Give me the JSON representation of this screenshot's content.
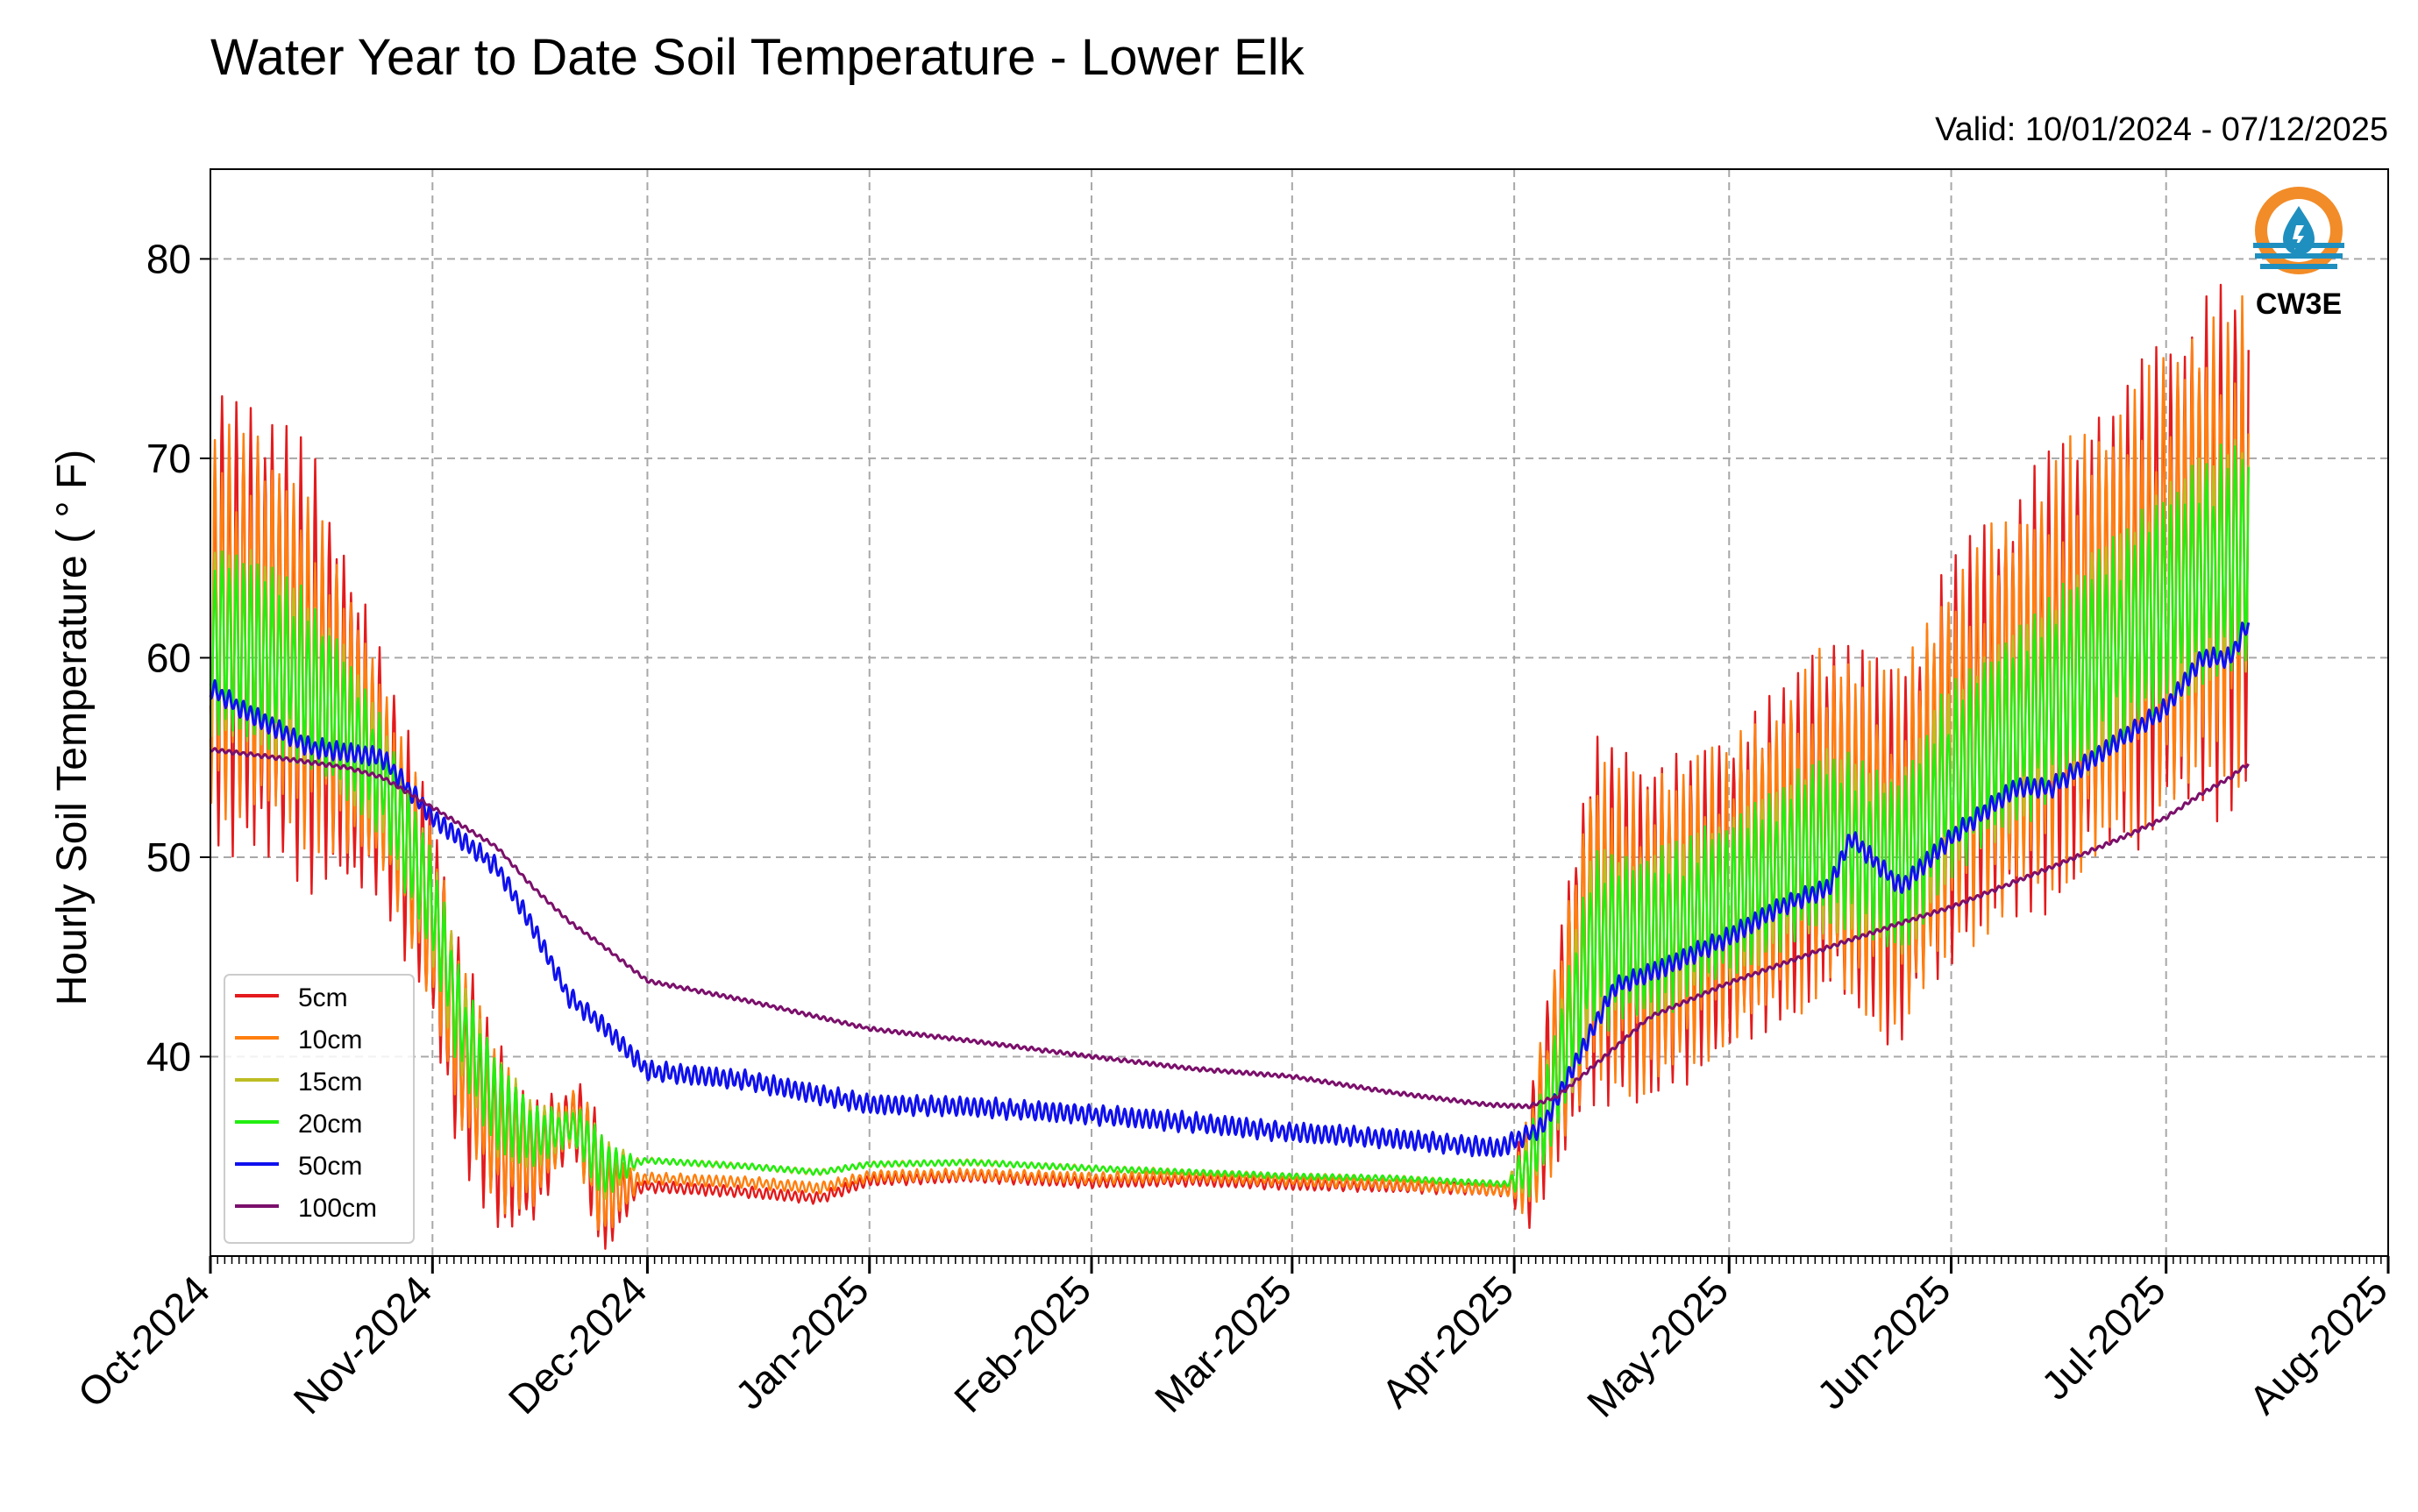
{
  "chart_data": {
    "type": "line",
    "title": "Water Year to Date Soil Temperature - Lower Elk",
    "subtitle": "Valid: 10/01/2024 - 07/12/2025",
    "ylabel": "Hourly Soil Temperature ( ° F)",
    "xlabel": "",
    "xlim": [
      "2024-10-01",
      "2025-08-01"
    ],
    "ylim": [
      30,
      84.5
    ],
    "yticks": [
      40,
      50,
      60,
      70,
      80
    ],
    "xticks": [
      "2024-10-01",
      "2024-11-01",
      "2024-12-01",
      "2025-01-01",
      "2025-02-01",
      "2025-03-01",
      "2025-04-01",
      "2025-05-01",
      "2025-06-01",
      "2025-07-01",
      "2025-08-01"
    ],
    "xtick_labels": [
      "Oct-2024",
      "Nov-2024",
      "Dec-2024",
      "Jan-2025",
      "Feb-2025",
      "Mar-2025",
      "Apr-2025",
      "May-2025",
      "Jun-2025",
      "Jul-2025",
      "Aug-2025"
    ],
    "grid": true,
    "legend_position": "lower-left",
    "logo": {
      "label": "CW3E",
      "colors": [
        "#f28c28",
        "#1f8fbf"
      ]
    },
    "series": [
      {
        "name": "5cm",
        "color": "#e41a1c",
        "amp": [
          [
            "2024-10-01",
            12
          ],
          [
            "2024-10-15",
            11
          ],
          [
            "2024-10-25",
            6
          ],
          [
            "2024-11-10",
            5
          ],
          [
            "2024-11-20",
            1.5
          ],
          [
            "2024-11-24",
            3.5
          ],
          [
            "2024-11-30",
            0.3
          ],
          [
            "2025-03-31",
            0.3
          ],
          [
            "2025-04-04",
            4
          ],
          [
            "2025-04-12",
            9
          ],
          [
            "2025-05-01",
            8
          ],
          [
            "2025-06-01",
            10
          ],
          [
            "2025-07-01",
            12
          ],
          [
            "2025-07-12",
            13
          ]
        ],
        "values": [
          [
            "2024-10-01",
            62
          ],
          [
            "2024-10-10",
            61
          ],
          [
            "2024-10-18",
            58
          ],
          [
            "2024-10-25",
            54
          ],
          [
            "2024-11-01",
            47
          ],
          [
            "2024-11-05",
            40
          ],
          [
            "2024-11-10",
            36
          ],
          [
            "2024-11-15",
            34.8
          ],
          [
            "2024-11-21",
            37
          ],
          [
            "2024-11-25",
            33
          ],
          [
            "2024-12-01",
            33.5
          ],
          [
            "2024-12-15",
            33.2
          ],
          [
            "2024-12-25",
            32.9
          ],
          [
            "2025-01-01",
            33.8
          ],
          [
            "2025-01-15",
            34
          ],
          [
            "2025-02-01",
            33.7
          ],
          [
            "2025-02-15",
            33.8
          ],
          [
            "2025-03-01",
            33.6
          ],
          [
            "2025-03-15",
            33.5
          ],
          [
            "2025-03-31",
            33.3
          ],
          [
            "2025-04-03",
            34.5
          ],
          [
            "2025-04-07",
            40
          ],
          [
            "2025-04-12",
            47
          ],
          [
            "2025-04-20",
            46
          ],
          [
            "2025-05-01",
            48
          ],
          [
            "2025-05-15",
            52
          ],
          [
            "2025-05-25",
            50
          ],
          [
            "2025-06-01",
            55
          ],
          [
            "2025-06-15",
            59
          ],
          [
            "2025-07-01",
            64
          ],
          [
            "2025-07-12",
            66
          ]
        ]
      },
      {
        "name": "10cm",
        "color": "#ff7f0e",
        "amp": [
          [
            "2024-10-01",
            10
          ],
          [
            "2024-10-15",
            9
          ],
          [
            "2024-10-25",
            5
          ],
          [
            "2024-11-10",
            4
          ],
          [
            "2024-11-20",
            1.2
          ],
          [
            "2024-11-24",
            3
          ],
          [
            "2024-11-30",
            0.3
          ],
          [
            "2025-03-31",
            0.3
          ],
          [
            "2025-04-04",
            3.5
          ],
          [
            "2025-04-12",
            8
          ],
          [
            "2025-05-01",
            7.5
          ],
          [
            "2025-06-01",
            9.5
          ],
          [
            "2025-07-01",
            11.5
          ],
          [
            "2025-07-12",
            12
          ]
        ],
        "values": [
          [
            "2024-10-01",
            62
          ],
          [
            "2024-10-10",
            61
          ],
          [
            "2024-10-18",
            58
          ],
          [
            "2024-10-25",
            54
          ],
          [
            "2024-11-01",
            47
          ],
          [
            "2024-11-05",
            40.5
          ],
          [
            "2024-11-10",
            36.2
          ],
          [
            "2024-11-15",
            35
          ],
          [
            "2024-11-21",
            37
          ],
          [
            "2024-11-25",
            33.2
          ],
          [
            "2024-12-01",
            33.9
          ],
          [
            "2024-12-15",
            33.7
          ],
          [
            "2024-12-25",
            33.4
          ],
          [
            "2025-01-01",
            34
          ],
          [
            "2025-01-15",
            34.1
          ],
          [
            "2025-02-01",
            33.9
          ],
          [
            "2025-02-15",
            34
          ],
          [
            "2025-03-01",
            33.8
          ],
          [
            "2025-03-15",
            33.6
          ],
          [
            "2025-03-31",
            33.3
          ],
          [
            "2025-04-03",
            34.5
          ],
          [
            "2025-04-07",
            40
          ],
          [
            "2025-04-12",
            47
          ],
          [
            "2025-04-20",
            46
          ],
          [
            "2025-05-01",
            48
          ],
          [
            "2025-05-15",
            52
          ],
          [
            "2025-05-25",
            50
          ],
          [
            "2025-06-01",
            55
          ],
          [
            "2025-06-15",
            59
          ],
          [
            "2025-07-01",
            64
          ],
          [
            "2025-07-12",
            66
          ]
        ]
      },
      {
        "name": "15cm",
        "color": "#bcbd22",
        "amp": [
          [
            "2024-10-01",
            5
          ],
          [
            "2024-10-15",
            4.5
          ],
          [
            "2024-10-25",
            3
          ],
          [
            "2024-11-10",
            2.5
          ],
          [
            "2024-11-20",
            0.8
          ],
          [
            "2024-11-24",
            1.8
          ],
          [
            "2024-11-30",
            0.15
          ],
          [
            "2025-03-31",
            0.15
          ],
          [
            "2025-04-04",
            2
          ],
          [
            "2025-04-12",
            4.5
          ],
          [
            "2025-05-01",
            4
          ],
          [
            "2025-06-01",
            4.8
          ],
          [
            "2025-07-01",
            5.5
          ],
          [
            "2025-07-12",
            6
          ]
        ],
        "values": [
          [
            "2024-10-01",
            61
          ],
          [
            "2024-10-10",
            60
          ],
          [
            "2024-10-18",
            57.5
          ],
          [
            "2024-10-25",
            54
          ],
          [
            "2024-11-01",
            47.5
          ],
          [
            "2024-11-05",
            41.5
          ],
          [
            "2024-11-10",
            37.5
          ],
          [
            "2024-11-15",
            36
          ],
          [
            "2024-11-21",
            36.5
          ],
          [
            "2024-11-25",
            34.3
          ],
          [
            "2024-12-01",
            34.8
          ],
          [
            "2024-12-15",
            34.5
          ],
          [
            "2024-12-25",
            34.2
          ],
          [
            "2025-01-01",
            34.6
          ],
          [
            "2025-01-15",
            34.7
          ],
          [
            "2025-02-01",
            34.4
          ],
          [
            "2025-02-15",
            34.2
          ],
          [
            "2025-03-01",
            34
          ],
          [
            "2025-03-15",
            33.9
          ],
          [
            "2025-03-31",
            33.6
          ],
          [
            "2025-04-03",
            34.5
          ],
          [
            "2025-04-07",
            39
          ],
          [
            "2025-04-12",
            46
          ],
          [
            "2025-04-20",
            46
          ],
          [
            "2025-05-01",
            48
          ],
          [
            "2025-05-15",
            51
          ],
          [
            "2025-05-25",
            49.5
          ],
          [
            "2025-06-01",
            54
          ],
          [
            "2025-06-15",
            58
          ],
          [
            "2025-07-01",
            63
          ],
          [
            "2025-07-12",
            65.5
          ]
        ]
      },
      {
        "name": "20cm",
        "color": "#22ee11",
        "amp": [
          [
            "2024-10-01",
            5
          ],
          [
            "2024-10-15",
            4.5
          ],
          [
            "2024-10-25",
            3
          ],
          [
            "2024-11-10",
            2.5
          ],
          [
            "2024-11-20",
            0.8
          ],
          [
            "2024-11-24",
            1.8
          ],
          [
            "2024-11-30",
            0.15
          ],
          [
            "2025-03-31",
            0.15
          ],
          [
            "2025-04-04",
            2
          ],
          [
            "2025-04-12",
            4.5
          ],
          [
            "2025-05-01",
            4
          ],
          [
            "2025-06-01",
            4.8
          ],
          [
            "2025-07-01",
            5.5
          ],
          [
            "2025-07-12",
            6
          ]
        ],
        "values": [
          [
            "2024-10-01",
            61
          ],
          [
            "2024-10-10",
            60
          ],
          [
            "2024-10-18",
            57.5
          ],
          [
            "2024-10-25",
            54
          ],
          [
            "2024-11-01",
            47.5
          ],
          [
            "2024-11-05",
            41.5
          ],
          [
            "2024-11-10",
            37.5
          ],
          [
            "2024-11-15",
            36
          ],
          [
            "2024-11-21",
            36.5
          ],
          [
            "2024-11-25",
            34.3
          ],
          [
            "2024-12-01",
            34.8
          ],
          [
            "2024-12-15",
            34.5
          ],
          [
            "2024-12-25",
            34.2
          ],
          [
            "2025-01-01",
            34.6
          ],
          [
            "2025-01-15",
            34.7
          ],
          [
            "2025-02-01",
            34.4
          ],
          [
            "2025-02-15",
            34.2
          ],
          [
            "2025-03-01",
            34
          ],
          [
            "2025-03-15",
            33.9
          ],
          [
            "2025-03-31",
            33.6
          ],
          [
            "2025-04-03",
            34.5
          ],
          [
            "2025-04-07",
            39
          ],
          [
            "2025-04-12",
            46
          ],
          [
            "2025-04-20",
            46
          ],
          [
            "2025-05-01",
            48
          ],
          [
            "2025-05-15",
            51
          ],
          [
            "2025-05-25",
            49.5
          ],
          [
            "2025-06-01",
            54
          ],
          [
            "2025-06-15",
            58
          ],
          [
            "2025-07-01",
            63
          ],
          [
            "2025-07-12",
            65.5
          ]
        ]
      },
      {
        "name": "50cm",
        "color": "#1010ee",
        "amp": [
          [
            "2024-10-01",
            0.5
          ],
          [
            "2025-07-12",
            0.5
          ]
        ],
        "values": [
          [
            "2024-10-01",
            58.5
          ],
          [
            "2024-10-05",
            57.5
          ],
          [
            "2024-10-15",
            55.5
          ],
          [
            "2024-10-25",
            55
          ],
          [
            "2024-11-01",
            52
          ],
          [
            "2024-11-10",
            49.5
          ],
          [
            "2024-11-15",
            46.5
          ],
          [
            "2024-11-20",
            43
          ],
          [
            "2024-11-25",
            41.5
          ],
          [
            "2024-12-01",
            39.3
          ],
          [
            "2024-12-15",
            38.8
          ],
          [
            "2025-01-01",
            37.6
          ],
          [
            "2025-01-15",
            37.5
          ],
          [
            "2025-02-01",
            37.1
          ],
          [
            "2025-02-15",
            36.7
          ],
          [
            "2025-03-01",
            36.2
          ],
          [
            "2025-03-15",
            35.9
          ],
          [
            "2025-03-30",
            35.4
          ],
          [
            "2025-04-05",
            36.5
          ],
          [
            "2025-04-10",
            40
          ],
          [
            "2025-04-15",
            43.5
          ],
          [
            "2025-04-22",
            44.5
          ],
          [
            "2025-05-01",
            46
          ],
          [
            "2025-05-08",
            47.5
          ],
          [
            "2025-05-15",
            48.5
          ],
          [
            "2025-05-18",
            51
          ],
          [
            "2025-05-25",
            48.5
          ],
          [
            "2025-06-01",
            51
          ],
          [
            "2025-06-10",
            53.5
          ],
          [
            "2025-06-15",
            53.5
          ],
          [
            "2025-06-25",
            56
          ],
          [
            "2025-07-01",
            57.5
          ],
          [
            "2025-07-06",
            60
          ],
          [
            "2025-07-10",
            60
          ],
          [
            "2025-07-12",
            61.5
          ]
        ]
      },
      {
        "name": "100cm",
        "color": "#7b0f6b",
        "amp": [
          [
            "2024-10-01",
            0.1
          ],
          [
            "2025-07-12",
            0.1
          ]
        ],
        "values": [
          [
            "2024-10-01",
            55.4
          ],
          [
            "2024-10-10",
            55
          ],
          [
            "2024-10-20",
            54.5
          ],
          [
            "2024-10-25",
            54
          ],
          [
            "2024-11-01",
            52.5
          ],
          [
            "2024-11-10",
            50.5
          ],
          [
            "2024-11-15",
            48.5
          ],
          [
            "2024-11-20",
            46.8
          ],
          [
            "2024-11-25",
            45.5
          ],
          [
            "2024-12-01",
            43.8
          ],
          [
            "2024-12-15",
            42.8
          ],
          [
            "2025-01-01",
            41.4
          ],
          [
            "2025-01-15",
            40.8
          ],
          [
            "2025-02-01",
            40
          ],
          [
            "2025-02-15",
            39.4
          ],
          [
            "2025-03-01",
            39
          ],
          [
            "2025-03-15",
            38.2
          ],
          [
            "2025-03-28",
            37.6
          ],
          [
            "2025-04-03",
            37.5
          ],
          [
            "2025-04-07",
            38
          ],
          [
            "2025-04-12",
            39.5
          ],
          [
            "2025-04-20",
            42
          ],
          [
            "2025-05-01",
            43.7
          ],
          [
            "2025-05-15",
            45.5
          ],
          [
            "2025-05-25",
            46.7
          ],
          [
            "2025-06-01",
            47.5
          ],
          [
            "2025-06-15",
            49.5
          ],
          [
            "2025-06-25",
            51
          ],
          [
            "2025-07-01",
            52
          ],
          [
            "2025-07-06",
            53.2
          ],
          [
            "2025-07-10",
            54
          ],
          [
            "2025-07-12",
            54.6
          ]
        ]
      }
    ]
  }
}
